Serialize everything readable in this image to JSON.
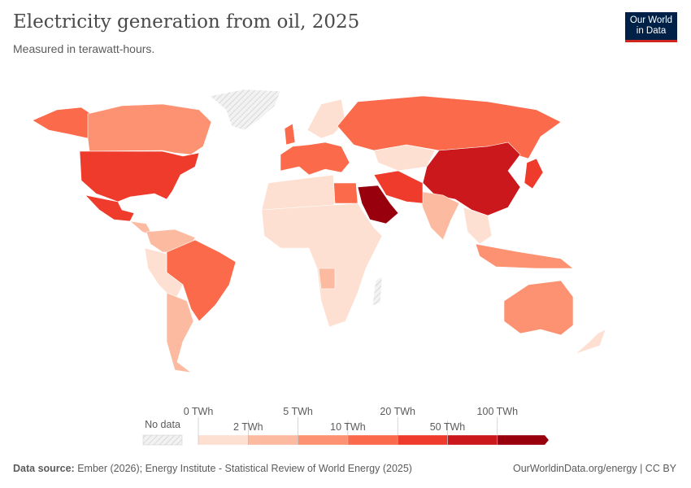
{
  "header": {
    "title": "Electricity generation from oil, 2025",
    "subtitle": "Measured in terawatt-hours.",
    "logo": "Our World in Data"
  },
  "legend": {
    "no_data_label": "No data",
    "top_labels": [
      "0 TWh",
      "5 TWh",
      "20 TWh",
      "100 TWh"
    ],
    "bottom_labels": [
      "2 TWh",
      "10 TWh",
      "50 TWh"
    ],
    "bins": [
      0,
      2,
      5,
      10,
      20,
      50,
      100
    ],
    "colors": [
      "#fee0d2",
      "#fcbba1",
      "#fc9272",
      "#fb6a4a",
      "#ef3b2c",
      "#cb181d",
      "#99000d"
    ],
    "no_data_color": "#e0e0e0"
  },
  "footer": {
    "source_label": "Data source:",
    "source_text": "Ember (2026); Energy Institute - Statistical Review of World Energy (2025)",
    "right_text": "OurWorldinData.org/energy | CC BY"
  }
}
